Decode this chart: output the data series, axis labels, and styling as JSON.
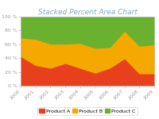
{
  "title": "Stacked Percent Area Chart",
  "years": [
    2000,
    2001,
    2002,
    2003,
    2004,
    2005,
    2006,
    2007,
    2008,
    2009
  ],
  "product_a": [
    43,
    30,
    26,
    33,
    26,
    19,
    26,
    40,
    18,
    18
  ],
  "product_b": [
    27,
    38,
    35,
    28,
    36,
    36,
    30,
    40,
    40,
    42
  ],
  "product_c": [
    30,
    32,
    39,
    39,
    38,
    45,
    44,
    20,
    42,
    40
  ],
  "color_a": "#e8401c",
  "color_b": "#f5a800",
  "color_c": "#6ab130",
  "title_color": "#7fa8c9",
  "tick_label_color": "#999999",
  "background_color": "#ffffff",
  "legend_labels": [
    "Product A",
    "Product B",
    "Product C"
  ],
  "ylabel_ticks": [
    "0 %",
    "20 %",
    "40 %",
    "60 %",
    "80 %",
    "100 %"
  ],
  "figsize": [
    2.0,
    1.5
  ],
  "dpi": 100
}
